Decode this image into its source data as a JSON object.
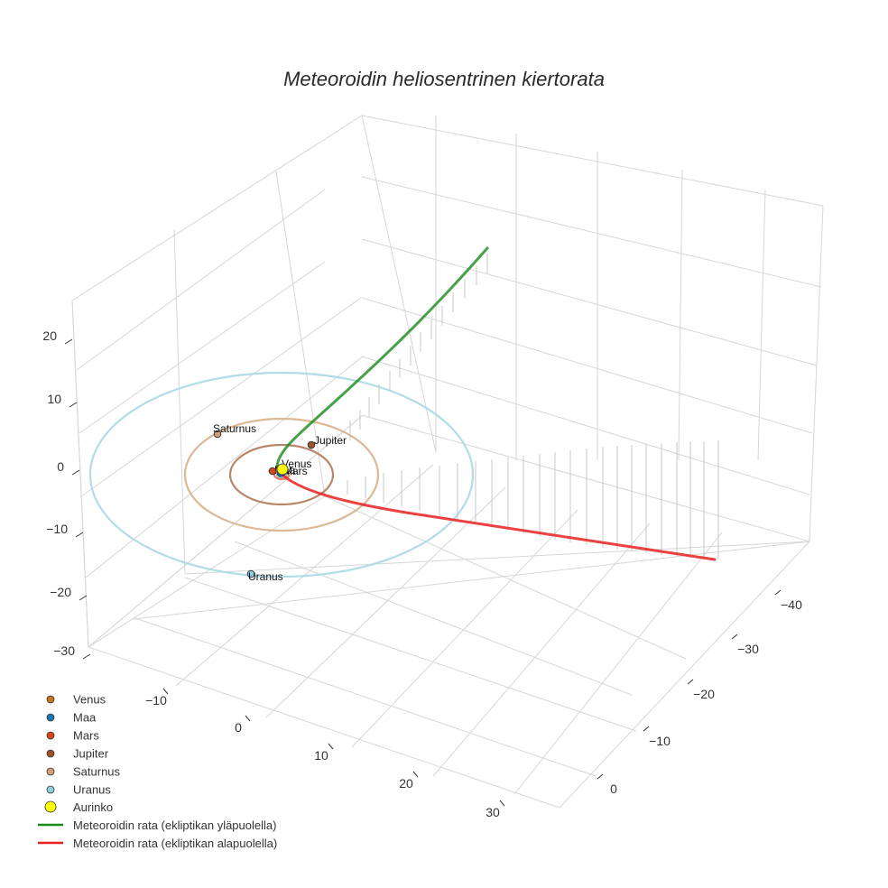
{
  "chart_data": {
    "type": "line3d",
    "title": "Meteoroidin heliosentrinen kiertorata",
    "axes": {
      "x": {
        "ticks": [
          -10,
          0,
          10,
          20,
          30
        ]
      },
      "y": {
        "ticks": [
          -40,
          -30,
          -20,
          -10,
          0
        ]
      },
      "z": {
        "ticks": [
          20,
          10,
          0,
          -10,
          -20,
          -30
        ]
      }
    },
    "planets": [
      {
        "name": "Venus",
        "color": "#c8731e",
        "orbit_radius": 0.72,
        "orbit_color": "#e8c050"
      },
      {
        "name": "Maa",
        "color": "#1f77b4",
        "orbit_radius": 1.0,
        "orbit_color": "#7fb0d8"
      },
      {
        "name": "Mars",
        "color": "#d9481c",
        "orbit_radius": 1.52,
        "orbit_color": "#e07050"
      },
      {
        "name": "Jupiter",
        "color": "#a0522d",
        "orbit_radius": 5.2,
        "orbit_color": "#b07a5a"
      },
      {
        "name": "Saturnus",
        "color": "#d2a074",
        "orbit_radius": 9.5,
        "orbit_color": "#d8b08a"
      },
      {
        "name": "Uranus",
        "color": "#8fcfe0",
        "orbit_radius": 19.2,
        "orbit_color": "#a8d8e6"
      }
    ],
    "sun": {
      "name": "Aurinko",
      "color": "#ffff00"
    },
    "series": [
      {
        "name": "Meteoroidin rata (ekliptikan yläpuolella)",
        "color": "#1a8a1a"
      },
      {
        "name": "Meteoroidin rata (ekliptikan alapuolella)",
        "color": "#e82020"
      }
    ]
  }
}
